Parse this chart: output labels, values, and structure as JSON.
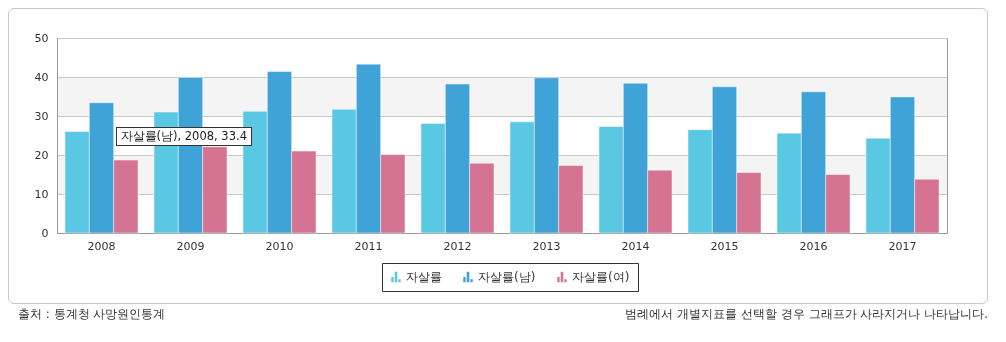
{
  "chart_data": {
    "type": "bar",
    "categories": [
      "2008",
      "2009",
      "2010",
      "2011",
      "2012",
      "2013",
      "2014",
      "2015",
      "2016",
      "2017"
    ],
    "series": [
      {
        "name": "자살률",
        "color": "#5ac8e3",
        "values": [
          26.0,
          31.0,
          31.2,
          31.7,
          28.1,
          28.5,
          27.3,
          26.5,
          25.6,
          24.3
        ]
      },
      {
        "name": "자살률(남)",
        "color": "#40a3d7",
        "values": [
          33.4,
          39.9,
          41.4,
          43.3,
          38.2,
          39.8,
          38.4,
          37.5,
          36.2,
          34.9
        ]
      },
      {
        "name": "자살률(여)",
        "color": "#d57492",
        "values": [
          18.7,
          22.1,
          21.0,
          20.1,
          17.9,
          17.3,
          16.1,
          15.5,
          15.0,
          13.8
        ]
      }
    ],
    "ylim": [
      0,
      50
    ],
    "yticks": [
      0,
      10,
      20,
      30,
      40,
      50
    ],
    "grid": "y",
    "legend": "bottom",
    "annotations": [
      {
        "text": "자살률(남), 2008, 33.4",
        "x": "2008",
        "y": 33.4
      },
      "출처 : 통계청 사망원인통계",
      "범례에서 개별지표를 선택할 경우 그래프가 사라지거나 나타납니다."
    ]
  }
}
